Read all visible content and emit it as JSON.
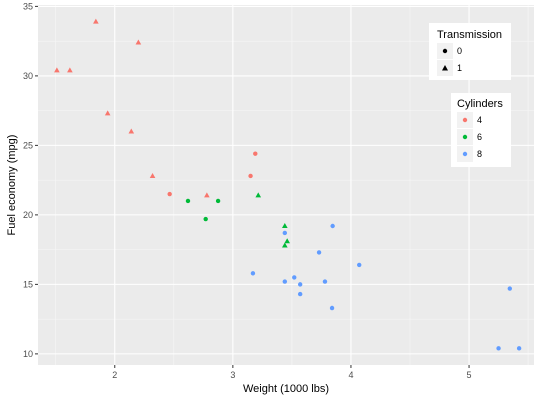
{
  "chart_data": {
    "type": "scatter",
    "xlabel": "Weight (1000 lbs)",
    "ylabel": "Fuel economy (mpg)",
    "xlim": [
      1.35,
      5.55
    ],
    "ylim": [
      9.2,
      35.1
    ],
    "x_ticks": [
      2,
      3,
      4,
      5
    ],
    "y_ticks": [
      10,
      15,
      20,
      25,
      30,
      35
    ],
    "grid": true,
    "background": "#ebebeb",
    "legends": [
      {
        "title": "Transmission",
        "placement": "top-right",
        "entries": [
          {
            "label": "0",
            "shape": "circle"
          },
          {
            "label": "1",
            "shape": "triangle"
          }
        ]
      },
      {
        "title": "Cylinders",
        "placement": "right",
        "entries": [
          {
            "label": "4",
            "color": "#f8766d"
          },
          {
            "label": "6",
            "color": "#00ba38"
          },
          {
            "label": "8",
            "color": "#619cff"
          }
        ]
      }
    ],
    "series": [
      {
        "name": "4",
        "color": "#f8766d",
        "points": [
          {
            "x": 1.84,
            "y": 33.9,
            "am": 1
          },
          {
            "x": 1.51,
            "y": 30.4,
            "am": 1
          },
          {
            "x": 1.62,
            "y": 30.4,
            "am": 1
          },
          {
            "x": 2.2,
            "y": 32.4,
            "am": 1
          },
          {
            "x": 1.94,
            "y": 27.3,
            "am": 1
          },
          {
            "x": 2.14,
            "y": 26.0,
            "am": 1
          },
          {
            "x": 3.19,
            "y": 24.4,
            "am": 0
          },
          {
            "x": 3.15,
            "y": 22.8,
            "am": 0
          },
          {
            "x": 2.32,
            "y": 22.8,
            "am": 1
          },
          {
            "x": 2.465,
            "y": 21.5,
            "am": 0
          },
          {
            "x": 2.78,
            "y": 21.4,
            "am": 1
          }
        ]
      },
      {
        "name": "6",
        "color": "#00ba38",
        "points": [
          {
            "x": 2.62,
            "y": 21.0,
            "am": 0
          },
          {
            "x": 2.875,
            "y": 21.0,
            "am": 0
          },
          {
            "x": 3.215,
            "y": 21.4,
            "am": 1
          },
          {
            "x": 2.77,
            "y": 19.7,
            "am": 0
          },
          {
            "x": 3.44,
            "y": 19.2,
            "am": 1
          },
          {
            "x": 3.46,
            "y": 18.1,
            "am": 1
          },
          {
            "x": 3.44,
            "y": 17.8,
            "am": 1
          }
        ]
      },
      {
        "name": "8",
        "color": "#619cff",
        "points": [
          {
            "x": 3.44,
            "y": 18.7,
            "am": 0
          },
          {
            "x": 3.845,
            "y": 19.2,
            "am": 0
          },
          {
            "x": 3.73,
            "y": 17.3,
            "am": 0
          },
          {
            "x": 4.07,
            "y": 16.4,
            "am": 0
          },
          {
            "x": 3.17,
            "y": 15.8,
            "am": 0
          },
          {
            "x": 3.52,
            "y": 15.5,
            "am": 0
          },
          {
            "x": 3.44,
            "y": 15.2,
            "am": 0
          },
          {
            "x": 3.78,
            "y": 15.2,
            "am": 0
          },
          {
            "x": 3.57,
            "y": 15.0,
            "am": 0
          },
          {
            "x": 3.57,
            "y": 14.3,
            "am": 0
          },
          {
            "x": 3.84,
            "y": 13.3,
            "am": 0
          },
          {
            "x": 5.345,
            "y": 14.7,
            "am": 0
          },
          {
            "x": 5.25,
            "y": 10.4,
            "am": 0
          },
          {
            "x": 5.424,
            "y": 10.4,
            "am": 0
          }
        ]
      }
    ]
  }
}
